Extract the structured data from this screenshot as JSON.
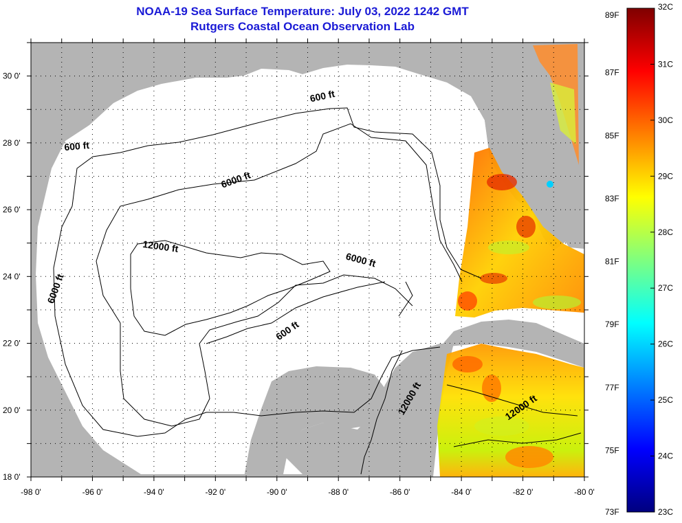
{
  "title": {
    "line1": "NOAA-19 Sea Surface Temperature:  July 03, 2022 1242 GMT",
    "line2": "Rutgers Coastal Ocean Observation Lab"
  },
  "map": {
    "lon_range": [
      -98,
      -80
    ],
    "lat_range": [
      18,
      31
    ],
    "x_ticks": [
      "-98 0'",
      "-96 0'",
      "-94 0'",
      "-92 0'",
      "-90 0'",
      "-88 0'",
      "-86 0'",
      "-84 0'",
      "-82 0'",
      "-80 0'"
    ],
    "y_ticks": [
      "18 0'",
      "20 0'",
      "22 0'",
      "24 0'",
      "26 0'",
      "28 0'",
      "30 0'"
    ],
    "land_color": "#b4b4b4",
    "contour_labels": [
      {
        "text": "600 ft",
        "lon": -96.5,
        "lat": 27.8,
        "angle": -5
      },
      {
        "text": "600 ft",
        "lon": -88.5,
        "lat": 29.3,
        "angle": -12
      },
      {
        "text": "6000 ft",
        "lon": -91.3,
        "lat": 26.8,
        "angle": -20
      },
      {
        "text": "6000 ft",
        "lon": -97.1,
        "lat": 23.6,
        "angle": -70
      },
      {
        "text": "12000 ft",
        "lon": -93.8,
        "lat": 24.8,
        "angle": 8
      },
      {
        "text": "6000 ft",
        "lon": -87.3,
        "lat": 24.4,
        "angle": 15
      },
      {
        "text": "600 ft",
        "lon": -89.6,
        "lat": 22.3,
        "angle": -35
      },
      {
        "text": "12000 ft",
        "lon": -85.6,
        "lat": 20.3,
        "angle": -60
      },
      {
        "text": "12000 ft",
        "lon": -82.0,
        "lat": 20.0,
        "angle": -35
      }
    ]
  },
  "colorbar": {
    "fahrenheit_labels": [
      "89F",
      "87F",
      "85F",
      "83F",
      "81F",
      "79F",
      "77F",
      "75F",
      "73F"
    ],
    "celsius_labels": [
      "32C",
      "31C",
      "30C",
      "29C",
      "28C",
      "27C",
      "26C",
      "25C",
      "24C",
      "23C"
    ],
    "colors": [
      "#00007f",
      "#0000ff",
      "#007fff",
      "#00ffff",
      "#7fff7f",
      "#ffff00",
      "#ff7f00",
      "#ff0000",
      "#7f0000"
    ]
  }
}
